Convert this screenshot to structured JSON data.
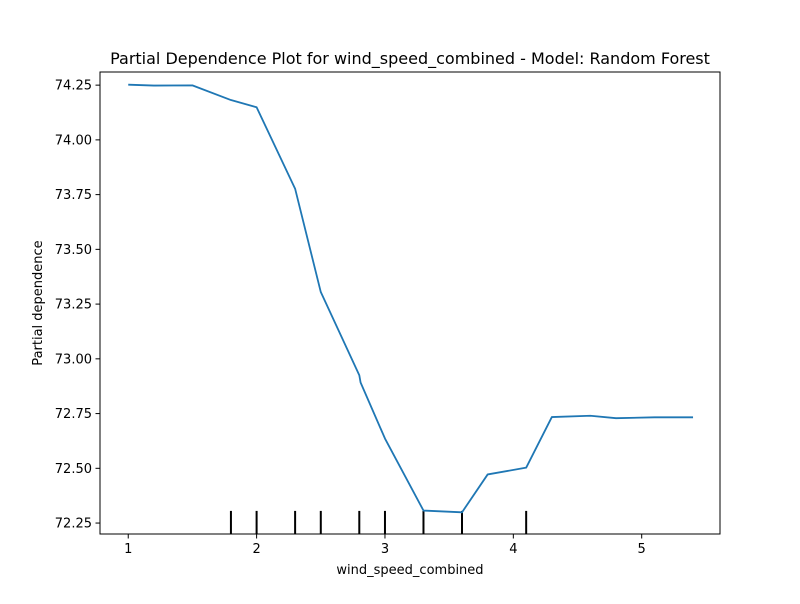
{
  "chart_data": {
    "type": "line",
    "title": "Partial Dependence Plot for wind_speed_combined - Model: Random Forest",
    "xlabel": "wind_speed_combined",
    "ylabel": "Partial dependence",
    "xlim": [
      0.78,
      5.61
    ],
    "ylim": [
      72.2,
      74.31
    ],
    "x_ticks": [
      1,
      2,
      3,
      4,
      5
    ],
    "x_tick_labels": [
      "1",
      "2",
      "3",
      "4",
      "5"
    ],
    "y_ticks": [
      72.25,
      72.5,
      72.75,
      73.0,
      73.25,
      73.5,
      73.75,
      74.0,
      74.25
    ],
    "y_tick_labels": [
      "72.25",
      "72.50",
      "72.75",
      "73.00",
      "73.25",
      "73.50",
      "73.75",
      "74.00",
      "74.25"
    ],
    "grid": false,
    "legend": false,
    "line_color": "#1f77b4",
    "rug_color": "#000000",
    "series": [
      {
        "x": [
          1.0,
          1.2,
          1.5,
          1.8,
          2.0,
          2.3,
          2.5,
          2.8,
          2.81,
          3.0,
          3.3,
          3.6,
          3.8,
          4.1,
          4.3,
          4.6,
          4.8,
          5.1,
          5.4
        ],
        "values": [
          74.252,
          74.248,
          74.249,
          74.182,
          74.149,
          73.777,
          73.305,
          72.925,
          72.892,
          72.636,
          72.307,
          72.299,
          72.472,
          72.503,
          72.734,
          72.74,
          72.729,
          72.733,
          72.733
        ]
      }
    ],
    "rug_x": [
      1.8,
      2.0,
      2.3,
      2.5,
      2.8,
      3.0,
      3.3,
      3.6,
      4.1
    ]
  }
}
